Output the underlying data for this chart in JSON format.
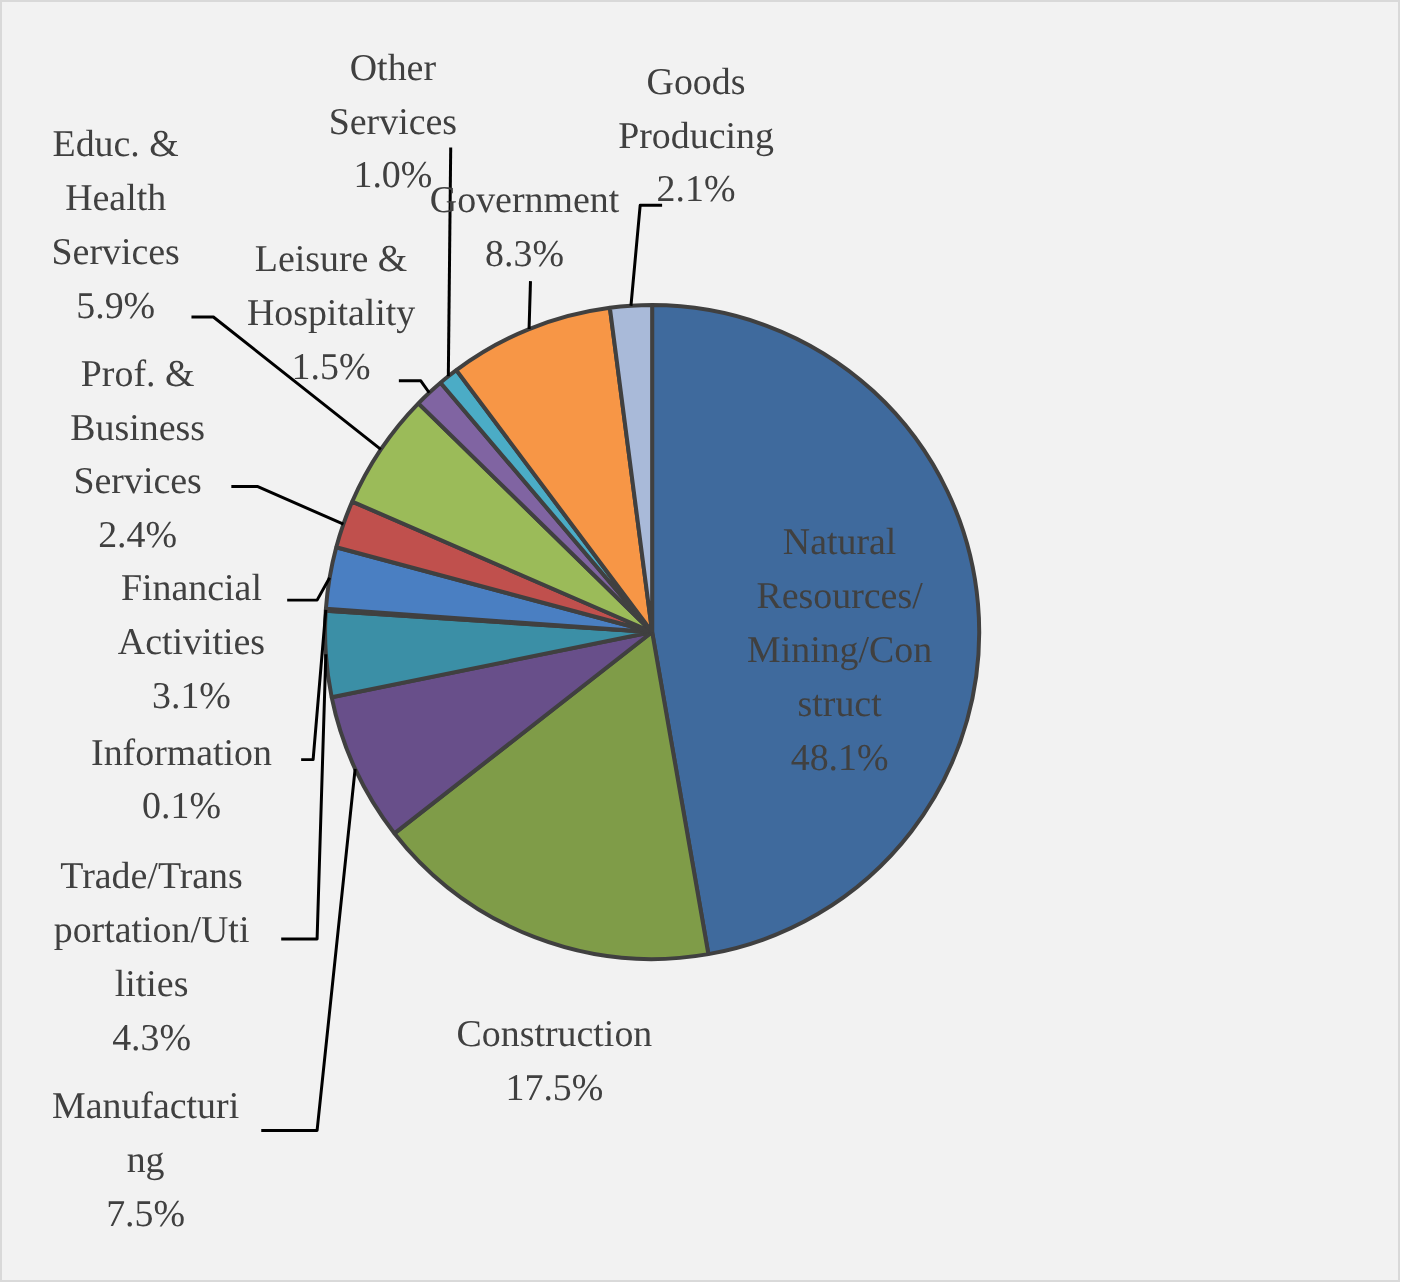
{
  "chart_data": {
    "type": "pie",
    "categories": [
      "Natural\nResources/\nMining/Con\nstruct",
      "Construction",
      "Manufacturi\nng",
      "Trade/Trans\nportation/Uti\nlities",
      "Information",
      "Financial\nActivities",
      "Prof. &\nBusiness\nServices",
      "Educ. &\nHealth\nServices",
      "Leisure &\nHospitality",
      "Other\nServices",
      "Government",
      "Goods\nProducing"
    ],
    "values": [
      48.1,
      17.5,
      7.5,
      4.3,
      0.1,
      3.1,
      2.4,
      5.9,
      1.5,
      1.0,
      8.3,
      2.1
    ],
    "colors": [
      "#3f6a9d",
      "#7f9c48",
      "#684f8a",
      "#3b8fa6",
      "#3d5f9a",
      "#4a7fc2",
      "#c0504d",
      "#9bbb59",
      "#8064a2",
      "#4bacc6",
      "#f79646",
      "#a9bad9"
    ],
    "value_labels": [
      "48.1%",
      "17.5%",
      "7.5%",
      "4.3%",
      "0.1%",
      "3.1%",
      "2.4%",
      "5.9%",
      "1.5%",
      "1.0%",
      "8.3%",
      "2.1%"
    ]
  }
}
